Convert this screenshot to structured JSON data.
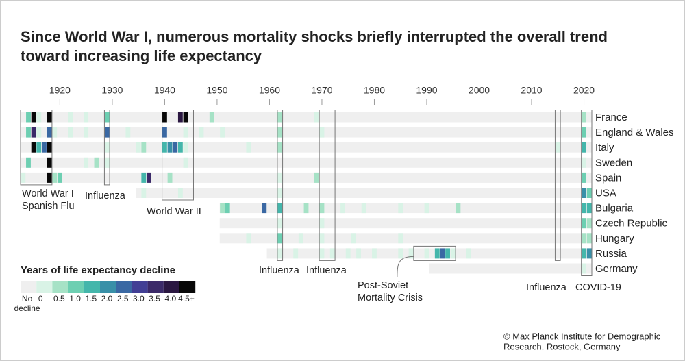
{
  "chart_data": {
    "type": "heatmap",
    "title": [
      "Since World War I, numerous mortality shocks briefly interrupted the overall trend",
      "toward increasing life expectancy"
    ],
    "xlim": [
      1912.5,
      2021.5
    ],
    "xticks": [
      1920,
      1930,
      1940,
      1950,
      1960,
      1970,
      1980,
      1990,
      2000,
      2010,
      2020
    ],
    "series": [
      {
        "name": "France",
        "start": 1913,
        "end": 2021,
        "declines": [
          {
            "year": 1914,
            "value": 1.0
          },
          {
            "year": 1915,
            "value": 5
          },
          {
            "year": 1916,
            "value": 0.3
          },
          {
            "year": 1918,
            "value": 5
          },
          {
            "year": 1922,
            "value": 0.3
          },
          {
            "year": 1925,
            "value": 0.3
          },
          {
            "year": 1929,
            "value": 1.2
          },
          {
            "year": 1940,
            "value": 5
          },
          {
            "year": 1943,
            "value": 4.2
          },
          {
            "year": 1944,
            "value": 5
          },
          {
            "year": 1949,
            "value": 0.7
          },
          {
            "year": 1962,
            "value": 0.7
          },
          {
            "year": 1969,
            "value": 0.3
          },
          {
            "year": 2020,
            "value": 0.7
          }
        ]
      },
      {
        "name": "England & Wales",
        "start": 1913,
        "end": 2021,
        "declines": [
          {
            "year": 1914,
            "value": 1.2
          },
          {
            "year": 1915,
            "value": 3.7
          },
          {
            "year": 1916,
            "value": 0.3
          },
          {
            "year": 1918,
            "value": 2.7
          },
          {
            "year": 1919,
            "value": 0.3
          },
          {
            "year": 1922,
            "value": 0.3
          },
          {
            "year": 1925,
            "value": 0.3
          },
          {
            "year": 1929,
            "value": 2.7
          },
          {
            "year": 1933,
            "value": 0.3
          },
          {
            "year": 1940,
            "value": 2.8
          },
          {
            "year": 1944,
            "value": 0.3
          },
          {
            "year": 1947,
            "value": 0.3
          },
          {
            "year": 1951,
            "value": 0.3
          },
          {
            "year": 1962,
            "value": 0.5
          },
          {
            "year": 1970,
            "value": 0.3
          },
          {
            "year": 2020,
            "value": 1.2
          }
        ]
      },
      {
        "name": "Italy",
        "start": 1913,
        "end": 2021,
        "declines": [
          {
            "year": 1915,
            "value": 5
          },
          {
            "year": 1916,
            "value": 1.7
          },
          {
            "year": 1917,
            "value": 2.7
          },
          {
            "year": 1918,
            "value": 5
          },
          {
            "year": 1929,
            "value": 0.3
          },
          {
            "year": 1935,
            "value": 0.3
          },
          {
            "year": 1936,
            "value": 0.8
          },
          {
            "year": 1940,
            "value": 1.7
          },
          {
            "year": 1941,
            "value": 2.3
          },
          {
            "year": 1942,
            "value": 2.7
          },
          {
            "year": 1943,
            "value": 1.7
          },
          {
            "year": 1944,
            "value": 0.3
          },
          {
            "year": 1956,
            "value": 0.3
          },
          {
            "year": 1962,
            "value": 0.5
          },
          {
            "year": 2015,
            "value": 0.3
          },
          {
            "year": 2020,
            "value": 1.5
          }
        ]
      },
      {
        "name": "Sweden",
        "start": 1913,
        "end": 2021,
        "declines": [
          {
            "year": 1914,
            "value": 1.3
          },
          {
            "year": 1918,
            "value": 5
          },
          {
            "year": 1925,
            "value": 0.3
          },
          {
            "year": 1927,
            "value": 0.5
          },
          {
            "year": 1929,
            "value": 0.3
          },
          {
            "year": 1944,
            "value": 0.3
          },
          {
            "year": 2020,
            "value": 0.3
          }
        ]
      },
      {
        "name": "Spain",
        "start": 1913,
        "end": 2021,
        "declines": [
          {
            "year": 1913,
            "value": 0.3
          },
          {
            "year": 1918,
            "value": 5
          },
          {
            "year": 1919,
            "value": 0.8
          },
          {
            "year": 1920,
            "value": 1.2
          },
          {
            "year": 1936,
            "value": 1.6
          },
          {
            "year": 1937,
            "value": 3.6
          },
          {
            "year": 1941,
            "value": 0.8
          },
          {
            "year": 1962,
            "value": 0.3
          },
          {
            "year": 1969,
            "value": 0.5
          },
          {
            "year": 2020,
            "value": 1.2
          }
        ]
      },
      {
        "name": "USA",
        "start": 1935,
        "end": 2021,
        "declines": [
          {
            "year": 1936,
            "value": 0.3
          },
          {
            "year": 1943,
            "value": 0.3
          },
          {
            "year": 1962,
            "value": 0.3
          },
          {
            "year": 2020,
            "value": 2.3
          },
          {
            "year": 2021,
            "value": 1.2
          }
        ]
      },
      {
        "name": "Bulgaria",
        "start": 1951,
        "end": 2021,
        "declines": [
          {
            "year": 1951,
            "value": 0.7
          },
          {
            "year": 1952,
            "value": 1.3
          },
          {
            "year": 1959,
            "value": 2.6
          },
          {
            "year": 1962,
            "value": 1.6
          },
          {
            "year": 1967,
            "value": 0.5
          },
          {
            "year": 1970,
            "value": 0.5
          },
          {
            "year": 1974,
            "value": 0.3
          },
          {
            "year": 1978,
            "value": 0.3
          },
          {
            "year": 1985,
            "value": 0.3
          },
          {
            "year": 1990,
            "value": 0.3
          },
          {
            "year": 1996,
            "value": 0.5
          },
          {
            "year": 2020,
            "value": 1.8
          },
          {
            "year": 2021,
            "value": 1.8
          }
        ]
      },
      {
        "name": "Czech Republic",
        "start": 1951,
        "end": 2021,
        "declines": [
          {
            "year": 1962,
            "value": 0.3
          },
          {
            "year": 1970,
            "value": 0.3
          },
          {
            "year": 2020,
            "value": 1.3
          },
          {
            "year": 2021,
            "value": 0.5
          }
        ]
      },
      {
        "name": "Hungary",
        "start": 1951,
        "end": 2021,
        "declines": [
          {
            "year": 1956,
            "value": 0.3
          },
          {
            "year": 1962,
            "value": 1.2
          },
          {
            "year": 1966,
            "value": 0.3
          },
          {
            "year": 1970,
            "value": 0.3
          },
          {
            "year": 1976,
            "value": 0.3
          },
          {
            "year": 1985,
            "value": 0.3
          },
          {
            "year": 2020,
            "value": 0.7
          },
          {
            "year": 2021,
            "value": 0.7
          }
        ]
      },
      {
        "name": "Russia",
        "start": 1960,
        "end": 2021,
        "declines": [
          {
            "year": 1962,
            "value": 0.3
          },
          {
            "year": 1965,
            "value": 0.3
          },
          {
            "year": 1970,
            "value": 0.3
          },
          {
            "year": 1972,
            "value": 0.3
          },
          {
            "year": 1975,
            "value": 0.3
          },
          {
            "year": 1977,
            "value": 0.3
          },
          {
            "year": 1980,
            "value": 0.3
          },
          {
            "year": 1985,
            "value": 0.3
          },
          {
            "year": 1987,
            "value": 0.3
          },
          {
            "year": 1990,
            "value": 0.3
          },
          {
            "year": 1992,
            "value": 1.8
          },
          {
            "year": 1993,
            "value": 2.7
          },
          {
            "year": 1994,
            "value": 1.5
          },
          {
            "year": 1995,
            "value": 0.3
          },
          {
            "year": 1998,
            "value": 0.3
          },
          {
            "year": 2020,
            "value": 1.5
          },
          {
            "year": 2021,
            "value": 2.0
          }
        ]
      },
      {
        "name": "Germany",
        "start": 1991,
        "end": 2021,
        "declines": [
          {
            "year": 2020,
            "value": 0.3
          }
        ]
      }
    ],
    "annotations": [
      {
        "text": [
          "World War I",
          "Spanish Flu"
        ],
        "years": [
          1913,
          1918
        ],
        "rows": [
          0,
          4
        ]
      },
      {
        "text": [
          "Influenza"
        ],
        "years": [
          1929,
          1929
        ],
        "rows": [
          0,
          4
        ]
      },
      {
        "text": [
          "World War II"
        ],
        "years": [
          1940,
          1945
        ],
        "rows": [
          0,
          5
        ]
      },
      {
        "text": [
          "Influenza"
        ],
        "years": [
          1962,
          1962
        ],
        "rows": [
          0,
          9
        ]
      },
      {
        "text": [
          "Influenza"
        ],
        "years": [
          1970,
          1972
        ],
        "rows": [
          0,
          9
        ]
      },
      {
        "text": [
          "Post-Soviet",
          "Mortality Crisis"
        ],
        "years": [
          1988,
          1995
        ],
        "rows": [
          9,
          9
        ]
      },
      {
        "text": [
          "Influenza"
        ],
        "years": [
          2015,
          2015
        ],
        "rows": [
          0,
          9
        ]
      },
      {
        "text": [
          "COVID-19"
        ],
        "years": [
          2020,
          2021
        ],
        "rows": [
          0,
          10
        ]
      }
    ],
    "legend": {
      "title": "Years of life expectancy decline",
      "no_decline": [
        "No",
        "decline"
      ],
      "no_decline_color": "#efefef",
      "thresholds": [
        0,
        0.5,
        {
          "value": 1,
          "label": "1.0"
        },
        1.5,
        {
          "value": 2,
          "label": "2.0"
        },
        2.5,
        {
          "value": 3,
          "label": "3.0"
        },
        3.5,
        {
          "value": 4,
          "label": "4.0"
        },
        {
          "value": 4.5,
          "label": "4.5+"
        }
      ],
      "colors": [
        "#d9f3e6",
        "#a6e2c6",
        "#6dcfb2",
        "#44b6ab",
        "#3990a8",
        "#3a68a3",
        "#423f95",
        "#3b2a69",
        "#2a1741",
        "#080808"
      ]
    },
    "credit": [
      "© Max Planck Institute for Demographic",
      "Research, Rostock, Germany"
    ]
  }
}
